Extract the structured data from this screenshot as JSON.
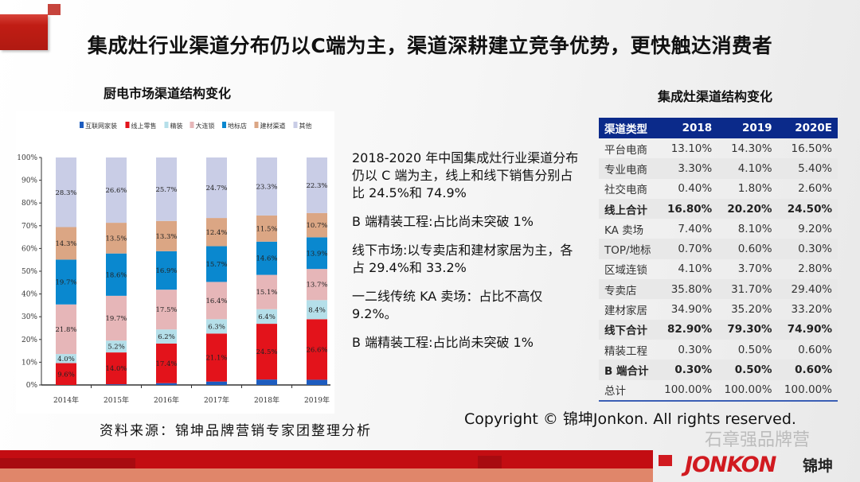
{
  "title": "集成灶行业渠道分布仍以C端为主，渠道深耕建立竞争优势，更快触达消费者",
  "chart_title": "厨电市场渠道结构变化",
  "table_title": "集成灶渠道结构变化",
  "notes": [
    "2018-2020 年中国集成灶行业渠道分布仍以 C 端为主，线上和线下销售分别占比 24.5%和 74.9%",
    "B 端精装工程:占比尚未突破 1%",
    "线下市场:以专卖店和建材家居为主，各占 29.4%和 33.2%",
    "一二线传统 KA 卖场：占比不高仅 9.2%。",
    "B 端精装工程:占比尚未突破 1%"
  ],
  "table": {
    "headers": [
      "渠道类型",
      "2018",
      "2019",
      "2020E"
    ],
    "rows": [
      {
        "cells": [
          "平台电商",
          "13.10%",
          "14.30%",
          "16.50%"
        ],
        "bold": false
      },
      {
        "cells": [
          "专业电商",
          "3.30%",
          "4.10%",
          "5.40%"
        ],
        "bold": false
      },
      {
        "cells": [
          "社交电商",
          "0.40%",
          "1.80%",
          "2.60%"
        ],
        "bold": false
      },
      {
        "cells": [
          "线上合计",
          "16.80%",
          "20.20%",
          "24.50%"
        ],
        "bold": true
      },
      {
        "cells": [
          "KA 卖场",
          "7.40%",
          "8.10%",
          "9.20%"
        ],
        "bold": false
      },
      {
        "cells": [
          "TOP/地标",
          "0.70%",
          "0.60%",
          "0.30%"
        ],
        "bold": false
      },
      {
        "cells": [
          "区域连锁",
          "4.10%",
          "3.70%",
          "2.80%"
        ],
        "bold": false
      },
      {
        "cells": [
          "专卖店",
          "35.80%",
          "31.70%",
          "29.40%"
        ],
        "bold": false
      },
      {
        "cells": [
          "建材家居",
          "34.90%",
          "35.20%",
          "33.20%"
        ],
        "bold": false
      },
      {
        "cells": [
          "线下合计",
          "82.90%",
          "79.30%",
          "74.90%"
        ],
        "bold": true
      },
      {
        "cells": [
          "精装工程",
          "0.30%",
          "0.50%",
          "0.60%"
        ],
        "bold": false
      },
      {
        "cells": [
          "B 端合计",
          "0.30%",
          "0.50%",
          "0.60%"
        ],
        "bold": true
      },
      {
        "cells": [
          "总计",
          "100.00%",
          "100.00%",
          "100.00%"
        ],
        "bold": false
      }
    ]
  },
  "source": "资料来源：锦坤品牌营销专家团整理分析",
  "copyright": "Copyright © 锦坤Jonkon. All rights reserved.",
  "logo_text": "JONKON",
  "logo_cn": "锦坤",
  "watermark": "石章强品牌营",
  "chart_data": {
    "type": "bar",
    "stacked": true,
    "title": "厨电市场渠道结构变化",
    "categories": [
      "2014年",
      "2015年",
      "2016年",
      "2017年",
      "2018年",
      "2019年"
    ],
    "ylim": [
      0,
      100
    ],
    "yticks": [
      "0%",
      "10%",
      "20%",
      "30%",
      "40%",
      "50%",
      "60%",
      "70%",
      "80%",
      "90%",
      "100%"
    ],
    "legend_position": "top",
    "series": [
      {
        "name": "互联网家装",
        "color": "#1d5cbf",
        "values": [
          0,
          0.3,
          0.8,
          1.5,
          2.4,
          2.3
        ],
        "labeled": false
      },
      {
        "name": "线上零售",
        "color": "#e3131b",
        "values": [
          9.6,
          14.0,
          17.4,
          21.1,
          24.5,
          26.6
        ],
        "labeled": true
      },
      {
        "name": "精装",
        "color": "#b5dfe9",
        "values": [
          4.0,
          5.2,
          6.2,
          6.3,
          6.4,
          8.4
        ],
        "labeled": true
      },
      {
        "name": "大连锁",
        "color": "#e6b6b8",
        "values": [
          21.8,
          19.7,
          17.5,
          16.4,
          15.1,
          13.7
        ],
        "labeled": true
      },
      {
        "name": "地标店",
        "color": "#0a88cf",
        "values": [
          19.7,
          18.6,
          16.9,
          15.7,
          14.6,
          13.9
        ],
        "labeled": true
      },
      {
        "name": "建材渠道",
        "color": "#dba684",
        "values": [
          14.3,
          13.5,
          13.3,
          12.4,
          11.5,
          10.7
        ],
        "labeled": true
      },
      {
        "name": "其他",
        "color": "#c9cde6",
        "values": [
          28.3,
          26.6,
          25.7,
          24.7,
          23.3,
          22.3
        ],
        "labeled": true
      }
    ]
  }
}
